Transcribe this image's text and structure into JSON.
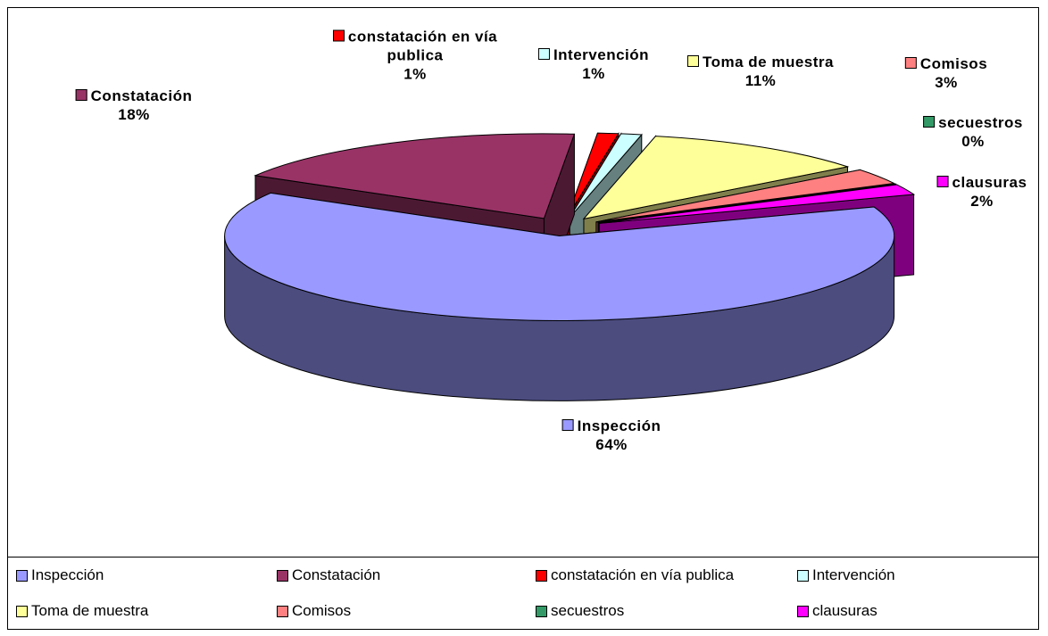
{
  "chart_data": {
    "type": "pie3d",
    "categories": [
      "Inspección",
      "Constatación",
      "constatación en vía publica",
      "Intervención",
      "Toma de muestra",
      "Comisos",
      "secuestros",
      "clausuras"
    ],
    "values": [
      64,
      18,
      1,
      1,
      11,
      3,
      0,
      2
    ],
    "value_labels": [
      "64%",
      "18%",
      "1%",
      "1%",
      "11%",
      "3%",
      "0%",
      "2%"
    ],
    "colors": [
      "#9999ff",
      "#993366",
      "#ff0000",
      "#ccffff",
      "#ffff99",
      "#ff8080",
      "#339966",
      "#ff00ff"
    ],
    "legend": "bottom"
  }
}
